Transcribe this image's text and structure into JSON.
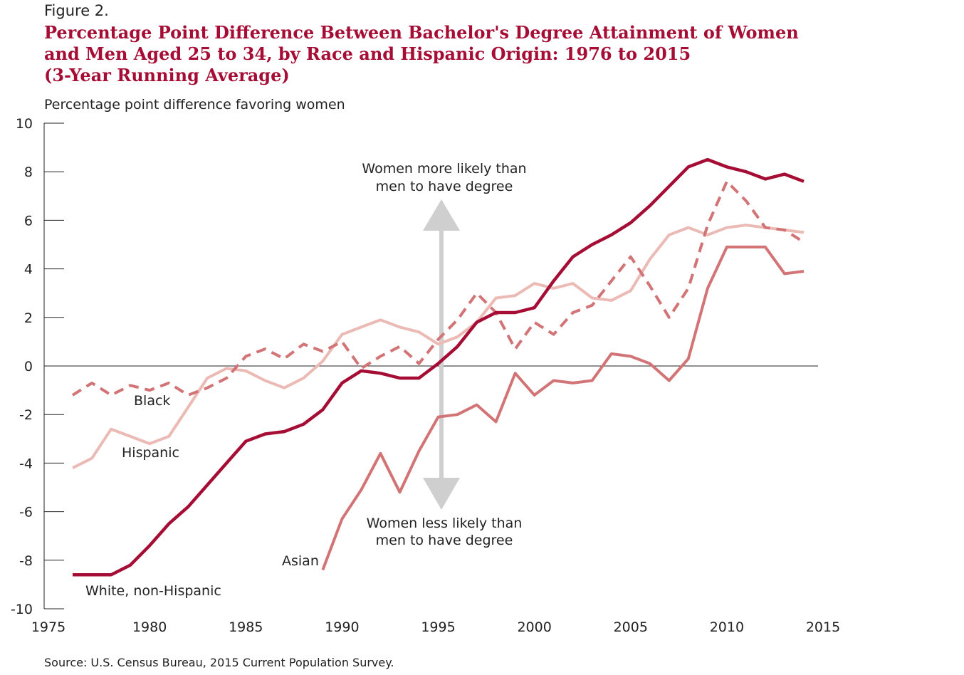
{
  "figure_label": "Figure 2.",
  "title_lines": [
    "Percentage Point Difference Between Bachelor's Degree Attainment of Women",
    "and Men Aged 25 to 34, by Race and Hispanic Origin: 1976 to 2015",
    "(3-Year Running Average)"
  ],
  "source": "Source: U.S. Census Bureau, 2015 Current Population Survey.",
  "colors": {
    "white": "#a50d35",
    "black": "#d27476",
    "hispanic": "#ecbab5",
    "asian": "#d27476",
    "arrow": "#cfcfcf",
    "axis": "#222222"
  },
  "chart_data": {
    "type": "line",
    "ylabel": "Percentage point difference favoring women",
    "xlim": [
      1975,
      2015
    ],
    "ylim": [
      -10,
      10
    ],
    "x_ticks": [
      "1975",
      "1980",
      "1985",
      "1990",
      "1995",
      "2000",
      "2005",
      "2010",
      "2015"
    ],
    "y_ticks": [
      "10",
      "8",
      "6",
      "4",
      "2",
      "0",
      "-2",
      "-4",
      "-6",
      "-8",
      "-10"
    ],
    "grid": false,
    "series": [
      {
        "name": "White, non-Hispanic",
        "style": "solid-thick",
        "x": [
          1976,
          1977,
          1978,
          1979,
          1980,
          1981,
          1982,
          1983,
          1984,
          1985,
          1986,
          1987,
          1988,
          1989,
          1990,
          1991,
          1992,
          1993,
          1994,
          1995,
          1996,
          1997,
          1998,
          1999,
          2000,
          2001,
          2002,
          2003,
          2004,
          2005,
          2006,
          2007,
          2008,
          2009,
          2010,
          2011,
          2012,
          2013,
          2014
        ],
        "y": [
          -8.6,
          -8.6,
          -8.6,
          -8.2,
          -7.4,
          -6.5,
          -5.8,
          -4.9,
          -4.0,
          -3.1,
          -2.8,
          -2.7,
          -2.4,
          -1.8,
          -0.7,
          -0.2,
          -0.3,
          -0.5,
          -0.5,
          0.1,
          0.8,
          1.8,
          2.2,
          2.2,
          2.4,
          3.5,
          4.5,
          5.0,
          5.4,
          5.9,
          6.6,
          7.4,
          8.2,
          8.5,
          8.2,
          8.0,
          7.7,
          7.9,
          7.6
        ]
      },
      {
        "name": "Black",
        "style": "dashed",
        "x": [
          1976,
          1977,
          1978,
          1979,
          1980,
          1981,
          1982,
          1983,
          1984,
          1985,
          1986,
          1987,
          1988,
          1989,
          1990,
          1991,
          1992,
          1993,
          1994,
          1995,
          1996,
          1997,
          1998,
          1999,
          2000,
          2001,
          2002,
          2003,
          2004,
          2005,
          2006,
          2007,
          2008,
          2009,
          2010,
          2011,
          2012,
          2013,
          2014
        ],
        "y": [
          -1.2,
          -0.7,
          -1.2,
          -0.8,
          -1.0,
          -0.7,
          -1.2,
          -0.9,
          -0.5,
          0.4,
          0.7,
          0.3,
          0.9,
          0.6,
          1.0,
          -0.1,
          0.4,
          0.8,
          0.1,
          1.1,
          1.9,
          3.0,
          2.2,
          0.7,
          1.8,
          1.3,
          2.2,
          2.5,
          3.5,
          4.5,
          3.3,
          2.0,
          3.2,
          5.8,
          7.6,
          6.8,
          5.7,
          5.6,
          5.1
        ]
      },
      {
        "name": "Hispanic",
        "style": "solid",
        "x": [
          1976,
          1977,
          1978,
          1979,
          1980,
          1981,
          1982,
          1983,
          1984,
          1985,
          1986,
          1987,
          1988,
          1989,
          1990,
          1991,
          1992,
          1993,
          1994,
          1995,
          1996,
          1997,
          1998,
          1999,
          2000,
          2001,
          2002,
          2003,
          2004,
          2005,
          2006,
          2007,
          2008,
          2009,
          2010,
          2011,
          2012,
          2013,
          2014
        ],
        "y": [
          -4.2,
          -3.8,
          -2.6,
          -2.9,
          -3.2,
          -2.9,
          -1.7,
          -0.5,
          -0.1,
          -0.2,
          -0.6,
          -0.9,
          -0.5,
          0.2,
          1.3,
          1.6,
          1.9,
          1.6,
          1.4,
          0.9,
          1.2,
          1.8,
          2.8,
          2.9,
          3.4,
          3.2,
          3.4,
          2.8,
          2.7,
          3.1,
          4.4,
          5.4,
          5.7,
          5.4,
          5.7,
          5.8,
          5.7,
          5.6,
          5.5
        ]
      },
      {
        "name": "Asian",
        "style": "solid-medium",
        "x": [
          1989,
          1990,
          1991,
          1992,
          1993,
          1994,
          1995,
          1996,
          1997,
          1998,
          1999,
          2000,
          2001,
          2002,
          2003,
          2004,
          2005,
          2006,
          2007,
          2008,
          2009,
          2010,
          2011,
          2012,
          2013,
          2014
        ],
        "y": [
          -8.4,
          -6.3,
          -5.1,
          -3.6,
          -5.2,
          -3.5,
          -2.1,
          -2.0,
          -1.6,
          -2.3,
          -0.3,
          -1.2,
          -0.6,
          -0.7,
          -0.6,
          0.5,
          0.4,
          0.1,
          -0.6,
          0.3,
          3.2,
          4.9,
          4.9,
          4.9,
          3.8,
          3.9
        ]
      }
    ],
    "annotations": {
      "up_line1": "Women more likely than",
      "up_line2": "men to have degree",
      "down_line1": "Women less likely than",
      "down_line2": "men to have degree"
    },
    "series_labels": {
      "black": "Black",
      "hispanic": "Hispanic",
      "asian": "Asian",
      "white": "White, non-Hispanic"
    }
  }
}
